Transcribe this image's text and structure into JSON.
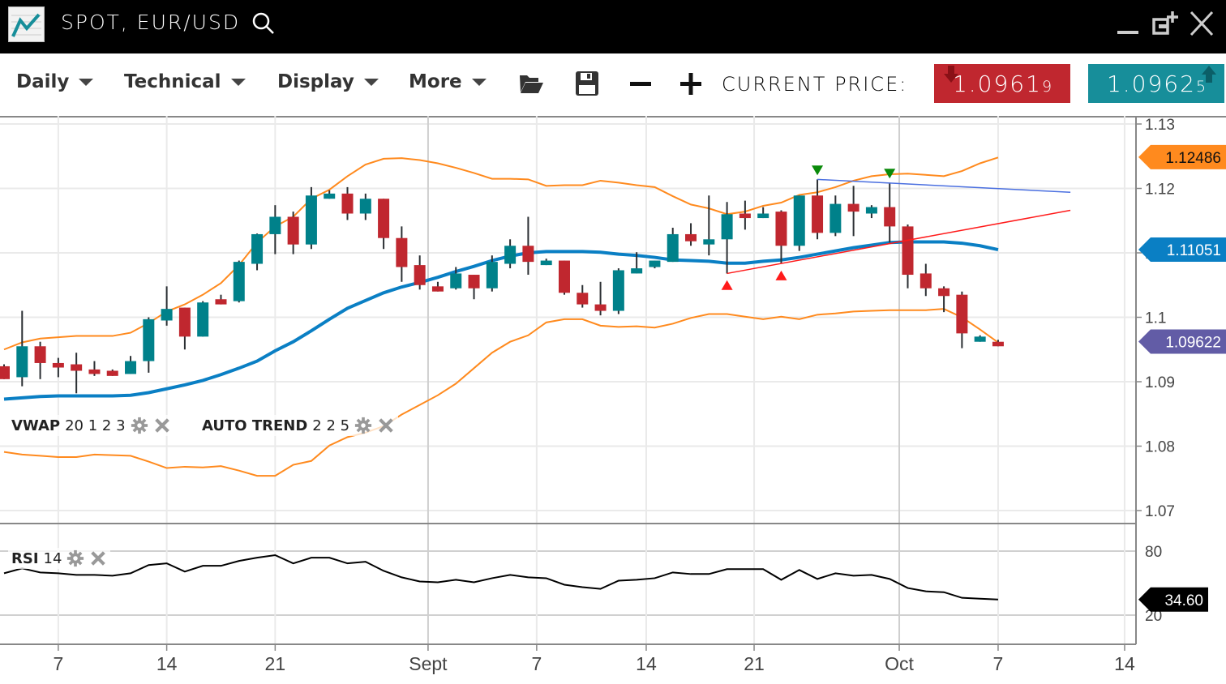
{
  "window": {
    "title": "SPOT, EUR/USD"
  },
  "toolbar": {
    "menus": [
      {
        "label": "Daily"
      },
      {
        "label": "Technical"
      },
      {
        "label": "Display"
      },
      {
        "label": "More"
      }
    ],
    "icons": [
      "folder-open-icon",
      "save-icon",
      "zoom-out-icon",
      "zoom-in-icon"
    ],
    "current_price_label": "CURRENT PRICE:",
    "bid": {
      "main": "1.0961",
      "pip": "9",
      "color": "#c0272f",
      "direction": "down"
    },
    "ask": {
      "main": "1.0962",
      "pip": "5",
      "color": "#178e9a",
      "direction": "up"
    }
  },
  "studies": {
    "vwap": {
      "name": "VWAP",
      "params": "20 1 2 3"
    },
    "autotrend": {
      "name": "AUTO TREND",
      "params": "2 2 5"
    },
    "rsi": {
      "name": "RSI",
      "params": "14"
    }
  },
  "colors": {
    "up": "#00818a",
    "down": "#c0272f",
    "band": "#ff8a1e",
    "middle": "#0a7fc4",
    "trend_upper": "#4a6fe0",
    "trend_lower": "#ff1a1a",
    "rsi": "#000000",
    "last_price_tag": "#625ca6"
  },
  "chart_data": {
    "type": "candlestick",
    "price_axis": {
      "ticks": [
        "1.13",
        "1.12",
        "1.11",
        "1.1",
        "1.09",
        "1.08",
        "1.07"
      ],
      "range": [
        1.0688,
        1.1313
      ]
    },
    "x_axis": {
      "ticks": [
        {
          "label": "7",
          "at": 4
        },
        {
          "label": "14",
          "at": 10
        },
        {
          "label": "21",
          "at": 16
        },
        {
          "label": "Sept",
          "at": 24.46
        },
        {
          "label": "7",
          "at": 30.47
        },
        {
          "label": "14",
          "at": 36.53
        },
        {
          "label": "21",
          "at": 42.5
        },
        {
          "label": "Oct",
          "at": 50.53
        },
        {
          "label": "7",
          "at": 56
        },
        {
          "label": "14",
          "at": 63
        }
      ]
    },
    "ohlc": [
      [
        1.0924,
        1.0927,
        1.0904,
        1.0904
      ],
      [
        1.0907,
        1.101,
        1.0893,
        1.0955
      ],
      [
        1.0955,
        1.0962,
        1.0904,
        1.0929
      ],
      [
        1.0929,
        1.0937,
        1.0907,
        1.0922
      ],
      [
        1.0927,
        1.0945,
        1.0882,
        1.0917
      ],
      [
        1.0919,
        1.0932,
        1.0909,
        1.0912
      ],
      [
        1.0917,
        1.0919,
        1.0909,
        1.0909
      ],
      [
        1.0912,
        1.094,
        1.0912,
        1.0932
      ],
      [
        1.0932,
        1.1,
        1.0914,
        1.0997
      ],
      [
        1.0995,
        1.1048,
        1.0987,
        1.1013
      ],
      [
        1.1015,
        1.1015,
        1.095,
        1.097
      ],
      [
        1.097,
        1.1025,
        1.097,
        1.1023
      ],
      [
        1.1028,
        1.1035,
        1.102,
        1.102
      ],
      [
        1.1025,
        1.1088,
        1.1023,
        1.1086
      ],
      [
        1.1083,
        1.113,
        1.1073,
        1.1129
      ],
      [
        1.1129,
        1.1174,
        1.1098,
        1.1156
      ],
      [
        1.1156,
        1.1164,
        1.1098,
        1.1113
      ],
      [
        1.1113,
        1.1202,
        1.1106,
        1.1189
      ],
      [
        1.1184,
        1.1197,
        1.1184,
        1.1192
      ],
      [
        1.1192,
        1.1202,
        1.1151,
        1.1161
      ],
      [
        1.1161,
        1.1192,
        1.1151,
        1.1184
      ],
      [
        1.1184,
        1.1184,
        1.1106,
        1.1123
      ],
      [
        1.1123,
        1.1141,
        1.1055,
        1.1078
      ],
      [
        1.1081,
        1.1096,
        1.1043,
        1.105
      ],
      [
        1.1048,
        1.1055,
        1.104,
        1.104
      ],
      [
        1.1045,
        1.1078,
        1.1043,
        1.1068
      ],
      [
        1.1066,
        1.1066,
        1.1028,
        1.1045
      ],
      [
        1.1045,
        1.1096,
        1.104,
        1.1086
      ],
      [
        1.1083,
        1.1121,
        1.1076,
        1.1111
      ],
      [
        1.1111,
        1.1156,
        1.1066,
        1.1086
      ],
      [
        1.1081,
        1.1091,
        1.1081,
        1.1088
      ],
      [
        1.1088,
        1.1088,
        1.1035,
        1.1038
      ],
      [
        1.1038,
        1.105,
        1.1015,
        1.102
      ],
      [
        1.102,
        1.1055,
        1.1003,
        1.101
      ],
      [
        1.101,
        1.1076,
        1.1005,
        1.1073
      ],
      [
        1.1068,
        1.1101,
        1.1068,
        1.1076
      ],
      [
        1.1078,
        1.1088,
        1.1076,
        1.1088
      ],
      [
        1.1086,
        1.1139,
        1.1086,
        1.1129
      ],
      [
        1.1129,
        1.1146,
        1.1111,
        1.1118
      ],
      [
        1.1113,
        1.1189,
        1.1096,
        1.1121
      ],
      [
        1.1121,
        1.1179,
        1.1068,
        1.116
      ],
      [
        1.1161,
        1.1181,
        1.1136,
        1.1154
      ],
      [
        1.1154,
        1.1171,
        1.1154,
        1.1161
      ],
      [
        1.1164,
        1.1166,
        1.1083,
        1.1111
      ],
      [
        1.1111,
        1.1189,
        1.1103,
        1.1189
      ],
      [
        1.1189,
        1.1214,
        1.1121,
        1.1131
      ],
      [
        1.1131,
        1.1189,
        1.1126,
        1.1176
      ],
      [
        1.1176,
        1.1204,
        1.1126,
        1.1164
      ],
      [
        1.1161,
        1.1174,
        1.1154,
        1.1171
      ],
      [
        1.1171,
        1.1209,
        1.1116,
        1.1141
      ],
      [
        1.1141,
        1.1144,
        1.1045,
        1.1066
      ],
      [
        1.1068,
        1.1083,
        1.1033,
        1.1045
      ],
      [
        1.1045,
        1.1048,
        1.1008,
        1.1033
      ],
      [
        1.1035,
        1.104,
        1.0952,
        1.0975
      ],
      [
        1.0962,
        1.0972,
        1.0962,
        1.097
      ],
      [
        1.0962,
        1.0965,
        1.0955,
        1.0955
      ]
    ],
    "band_upper": [
      1.095,
      1.0961,
      1.0967,
      1.0969,
      1.0971,
      1.0971,
      1.0971,
      1.0976,
      1.0991,
      1.1009,
      1.102,
      1.1035,
      1.1053,
      1.1081,
      1.1116,
      1.1141,
      1.1156,
      1.1184,
      1.1198,
      1.1219,
      1.1237,
      1.1246,
      1.1247,
      1.1244,
      1.1239,
      1.1232,
      1.1224,
      1.1215,
      1.1215,
      1.1214,
      1.1204,
      1.1205,
      1.1205,
      1.1212,
      1.1209,
      1.1205,
      1.1202,
      1.1188,
      1.1175,
      1.1169,
      1.116,
      1.1164,
      1.1173,
      1.1178,
      1.119,
      1.1194,
      1.1202,
      1.1212,
      1.1219,
      1.1222,
      1.1223,
      1.1221,
      1.1219,
      1.1227,
      1.1239,
      1.1248
    ],
    "band_middle": [
      1.0873,
      1.0875,
      1.0877,
      1.0878,
      1.0878,
      1.0878,
      1.0878,
      1.0879,
      1.0883,
      1.0889,
      1.0895,
      1.0902,
      1.0911,
      1.0921,
      1.0932,
      1.0948,
      1.0962,
      1.0979,
      1.0997,
      1.1014,
      1.1026,
      1.1038,
      1.1047,
      1.1054,
      1.1062,
      1.1071,
      1.1079,
      1.1088,
      1.1095,
      1.11,
      1.1102,
      1.1102,
      1.1102,
      1.1101,
      1.1098,
      1.1096,
      1.1093,
      1.1089,
      1.1088,
      1.1087,
      1.1084,
      1.1084,
      1.1087,
      1.1089,
      1.1093,
      1.1098,
      1.1103,
      1.1108,
      1.1112,
      1.1116,
      1.1117,
      1.1117,
      1.1117,
      1.1115,
      1.1111,
      1.1105
    ],
    "band_lower": [
      1.0791,
      1.0787,
      1.0785,
      1.0783,
      1.0783,
      1.0787,
      1.0786,
      1.0785,
      1.0776,
      1.0766,
      1.0768,
      1.0767,
      1.0769,
      1.0762,
      1.0754,
      1.0754,
      1.0771,
      1.0777,
      1.0801,
      1.0814,
      1.0821,
      1.0831,
      1.0849,
      1.0864,
      1.0879,
      1.0897,
      1.0921,
      1.0945,
      1.0962,
      1.0972,
      1.0992,
      1.0997,
      1.0997,
      1.0987,
      1.0985,
      1.0986,
      1.0984,
      1.099,
      1.0999,
      1.1005,
      1.1005,
      1.1001,
      1.0997,
      1.1001,
      1.0997,
      1.1004,
      1.1006,
      1.1009,
      1.101,
      1.1011,
      1.1011,
      1.1011,
      1.1013,
      1.1,
      1.0981,
      1.0961
    ],
    "trend_lines": [
      {
        "kind": "resistance",
        "from": [
          46,
          1.1214
        ],
        "to": [
          60,
          1.1194
        ]
      },
      {
        "kind": "support",
        "from": [
          41,
          1.1068
        ],
        "to": [
          60,
          1.1166
        ]
      }
    ],
    "markers": [
      {
        "kind": "peak",
        "at": 46,
        "price": 1.1228
      },
      {
        "kind": "peak",
        "at": 50,
        "price": 1.1223
      },
      {
        "kind": "trough",
        "at": 41,
        "price": 1.105
      },
      {
        "kind": "trough",
        "at": 44,
        "price": 1.1065
      }
    ],
    "price_tags": [
      {
        "label": "1.12486",
        "value": 1.12486,
        "color": "#ff8a1e",
        "text_color": "#111"
      },
      {
        "label": "1.11051",
        "value": 1.11051,
        "color": "#0a7fc4",
        "text_color": "#fff"
      },
      {
        "label": "1.09622",
        "value": 1.09622,
        "color": "#625ca6",
        "text_color": "#fff"
      }
    ],
    "rsi": {
      "ticks": [
        "80",
        "20"
      ],
      "values": [
        59.2,
        63.8,
        60.0,
        59.2,
        57.7,
        57.7,
        56.9,
        59.2,
        66.9,
        68.5,
        60.8,
        66.2,
        66.2,
        70.8,
        73.8,
        76.2,
        68.5,
        73.8,
        73.8,
        68.5,
        70.0,
        61.5,
        55.4,
        51.5,
        50.8,
        53.1,
        50.8,
        54.6,
        57.7,
        55.4,
        54.6,
        48.5,
        46.2,
        44.6,
        52.3,
        53.1,
        54.6,
        60.0,
        58.5,
        58.5,
        63.1,
        63.1,
        63.1,
        53.1,
        62.3,
        53.9,
        59.2,
        56.9,
        57.7,
        53.9,
        45.4,
        42.3,
        41.5,
        36.2,
        35.4,
        34.6
      ],
      "tag": {
        "label": "34.60",
        "value": 34.6
      }
    }
  }
}
